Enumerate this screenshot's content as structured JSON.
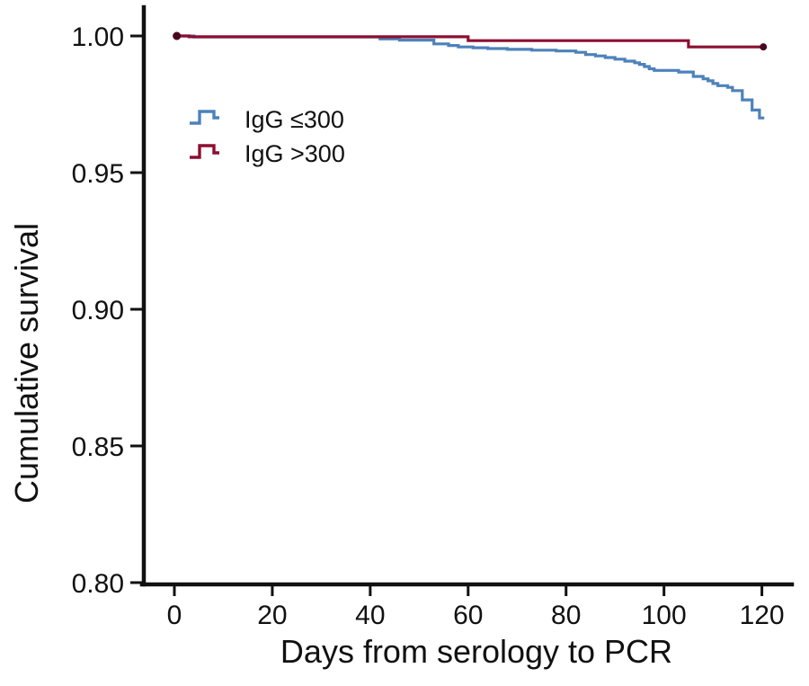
{
  "figure": {
    "background": "#ffffff",
    "axis_color": "#111111"
  },
  "chart_data": {
    "type": "line",
    "subtype": "kaplan-meier-step-survival",
    "title": "",
    "xlabel": "Days from serology to PCR",
    "ylabel": "Cumulative survival",
    "xlim": [
      0,
      120
    ],
    "ylim": [
      0.8,
      1.0
    ],
    "grid": false,
    "legend_position": "upper-left-inside",
    "x_ticks": [
      {
        "v": 0,
        "label": "0"
      },
      {
        "v": 20,
        "label": "20"
      },
      {
        "v": 40,
        "label": "40"
      },
      {
        "v": 60,
        "label": "60"
      },
      {
        "v": 80,
        "label": "80"
      },
      {
        "v": 100,
        "label": "100"
      },
      {
        "v": 120,
        "label": "120"
      }
    ],
    "y_ticks": [
      {
        "v": 1.0,
        "label": "1.00"
      },
      {
        "v": 0.95,
        "label": "0.95"
      },
      {
        "v": 0.9,
        "label": "0.90"
      },
      {
        "v": 0.85,
        "label": "0.85"
      },
      {
        "v": 0.8,
        "label": "0.80"
      }
    ],
    "series": [
      {
        "name": "IgG ≤300",
        "color": "#4d82ba",
        "dot_color": "#2f5f98",
        "start_dot": true,
        "end_dot": false,
        "points": [
          [
            0.5,
            1.0
          ],
          [
            4,
            0.9996
          ],
          [
            42,
            0.9989
          ],
          [
            46,
            0.9985
          ],
          [
            53,
            0.9971
          ],
          [
            56,
            0.9965
          ],
          [
            58,
            0.996
          ],
          [
            61,
            0.9957
          ],
          [
            64,
            0.9954
          ],
          [
            68,
            0.9951
          ],
          [
            73,
            0.9948
          ],
          [
            78,
            0.9945
          ],
          [
            82,
            0.994
          ],
          [
            84,
            0.9932
          ],
          [
            86,
            0.9927
          ],
          [
            88,
            0.9921
          ],
          [
            90,
            0.9915
          ],
          [
            92,
            0.9908
          ],
          [
            94,
            0.9902
          ],
          [
            95,
            0.9896
          ],
          [
            96,
            0.9888
          ],
          [
            97,
            0.988
          ],
          [
            98,
            0.9874
          ],
          [
            103,
            0.9868
          ],
          [
            106,
            0.9852
          ],
          [
            108,
            0.9843
          ],
          [
            109,
            0.9836
          ],
          [
            110,
            0.9826
          ],
          [
            111,
            0.9818
          ],
          [
            113,
            0.9812
          ],
          [
            114,
            0.98
          ],
          [
            116,
            0.9766
          ],
          [
            118,
            0.9729
          ],
          [
            119.5,
            0.97
          ],
          [
            120.5,
            0.97
          ]
        ]
      },
      {
        "name": "IgG >300",
        "color": "#8c0f32",
        "dot_color": "#4a081e",
        "start_dot": true,
        "end_dot": true,
        "points": [
          [
            0.5,
            1.0
          ],
          [
            3,
            0.9997
          ],
          [
            59,
            0.9997
          ],
          [
            60,
            0.9983
          ],
          [
            104,
            0.9983
          ],
          [
            105,
            0.996
          ],
          [
            120.3,
            0.996
          ]
        ]
      }
    ]
  }
}
